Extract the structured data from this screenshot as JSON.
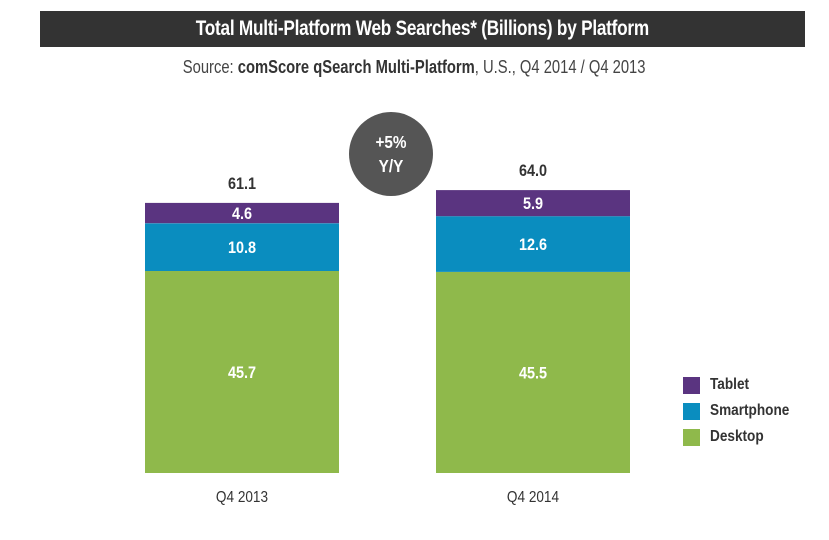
{
  "header": {
    "title": "Total Multi-Platform Web Searches* (Billions) by Platform",
    "subtitle_prefix": "Source: ",
    "subtitle_bold": "comScore qSearch Multi-Platform",
    "subtitle_suffix": ", U.S., Q4 2014 / Q4 2013"
  },
  "badge": {
    "line1": "+5%",
    "line2": "Y/Y"
  },
  "colors": {
    "tablet": "#5a3480",
    "smartphone": "#0a8dbf",
    "desktop": "#8fb94b",
    "title_bg": "#333333",
    "badge_bg": "#555555",
    "text_dark": "#333333"
  },
  "chart_data": {
    "type": "bar",
    "stacked": true,
    "title": "Total Multi-Platform Web Searches* (Billions) by Platform",
    "subtitle": "Source: comScore qSearch Multi-Platform, U.S., Q4 2014 / Q4 2013",
    "categories": [
      "Q4 2013",
      "Q4 2014"
    ],
    "series": [
      {
        "name": "Desktop",
        "color": "#8fb94b",
        "values": [
          45.7,
          45.5
        ]
      },
      {
        "name": "Smartphone",
        "color": "#0a8dbf",
        "values": [
          10.8,
          12.6
        ]
      },
      {
        "name": "Tablet",
        "color": "#5a3480",
        "values": [
          4.6,
          5.9
        ]
      }
    ],
    "totals": [
      61.1,
      64.0
    ],
    "totals_labels": [
      "61.1",
      "64.0"
    ],
    "value_labels": {
      "Desktop": [
        "45.7",
        "45.5"
      ],
      "Smartphone": [
        "10.8",
        "12.6"
      ],
      "Tablet": [
        "4.6",
        "5.9"
      ]
    },
    "annotation": "+5% Y/Y",
    "xlabel": "",
    "ylabel": "",
    "ylim": [
      0,
      64.0
    ],
    "grid": false,
    "legend": {
      "position": "right",
      "entries": [
        "Tablet",
        "Smartphone",
        "Desktop"
      ]
    }
  }
}
